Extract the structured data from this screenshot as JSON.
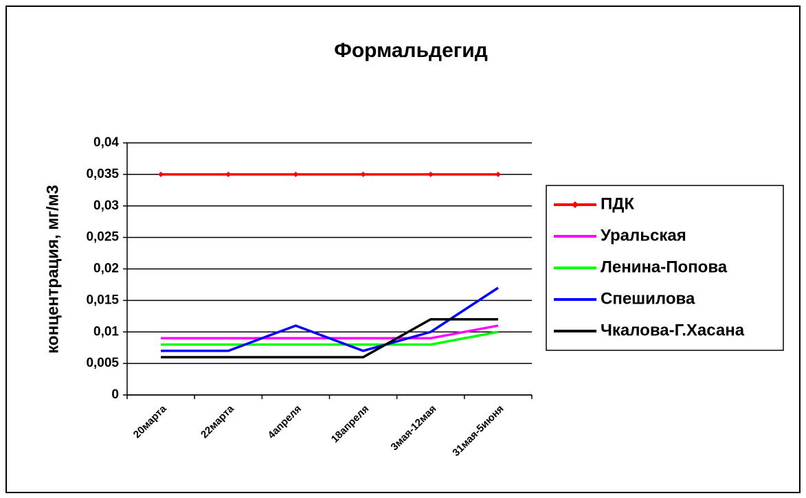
{
  "chart_data": {
    "type": "line",
    "title": "Формальдегид",
    "y_label": "концентрация, мг/м3",
    "categories": [
      "20марта",
      "22марта",
      "4апреля",
      "18апреля",
      "3мая-12мая",
      "31мая-5июня"
    ],
    "series": [
      {
        "name": "ПДК",
        "color": "#ff0000",
        "marker": "diamond",
        "values": [
          0.035,
          0.035,
          0.035,
          0.035,
          0.035,
          0.035
        ]
      },
      {
        "name": "Уральская",
        "color": "#ff00ff",
        "values": [
          0.009,
          0.009,
          0.009,
          0.009,
          0.009,
          0.011
        ]
      },
      {
        "name": "Ленина-Попова",
        "color": "#00ff00",
        "values": [
          0.008,
          0.008,
          0.008,
          0.008,
          0.008,
          0.01
        ]
      },
      {
        "name": "Спешилова",
        "color": "#0000ff",
        "values": [
          0.007,
          0.007,
          0.011,
          0.007,
          0.01,
          0.017
        ]
      },
      {
        "name": "Чкалова-Г.Хасана",
        "color": "#000000",
        "values": [
          0.006,
          0.006,
          0.006,
          0.006,
          0.012,
          0.012
        ]
      }
    ],
    "ylim": [
      0,
      0.04
    ],
    "yticks": [
      0,
      {
        "value": 0.005,
        "label": "0,005"
      },
      {
        "value": 0.01,
        "label": "0,01"
      },
      {
        "value": 0.015,
        "label": "0,015"
      },
      {
        "value": 0.02,
        "label": "0,02"
      },
      {
        "value": 0.025,
        "label": "0,025"
      },
      {
        "value": 0.03,
        "label": "0,03"
      },
      {
        "value": 0.035,
        "label": "0,035"
      },
      {
        "value": 0.04,
        "label": "0,04"
      }
    ],
    "grid": true,
    "legend": "right"
  }
}
